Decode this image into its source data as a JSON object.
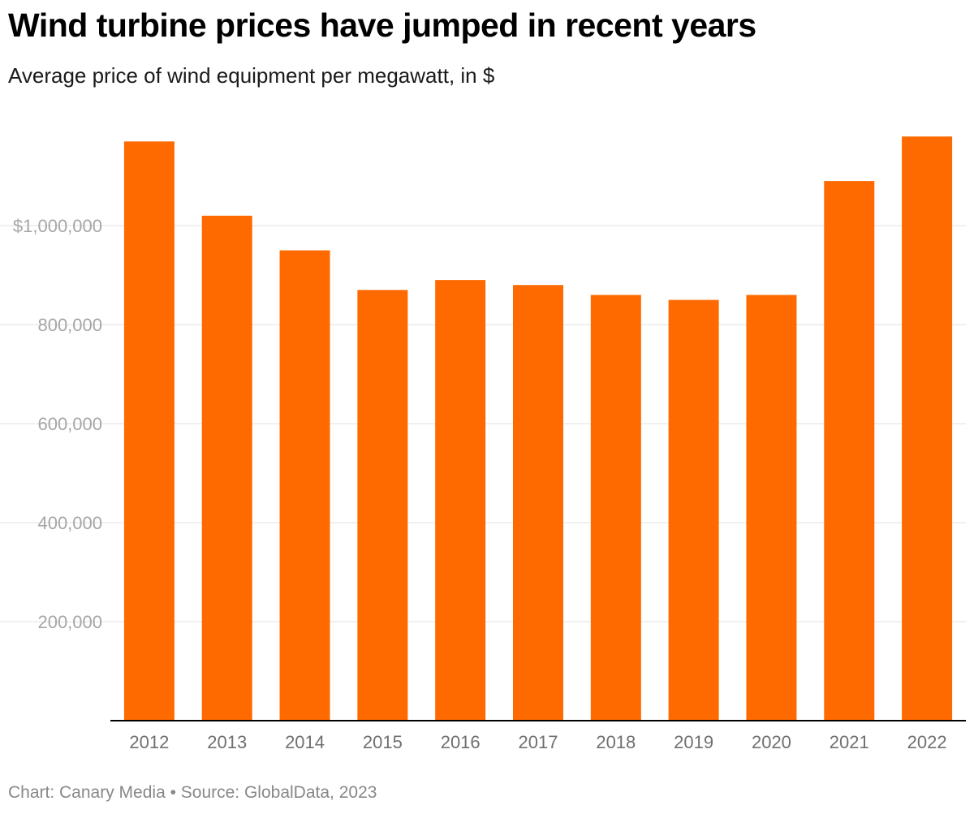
{
  "header": {
    "title": "Wind turbine prices have jumped in recent years",
    "subtitle": "Average price of wind equipment per megawatt, in $"
  },
  "footer": {
    "text": "Chart: Canary Media • Source: GlobalData, 2023"
  },
  "colors": {
    "bar": "#ff6a00",
    "grid": "#e2e2e2",
    "axis": "#000000",
    "tick_label": "#a6a6a6",
    "category_label": "#707070"
  },
  "chart_data": {
    "type": "bar",
    "categories": [
      "2012",
      "2013",
      "2014",
      "2015",
      "2016",
      "2017",
      "2018",
      "2019",
      "2020",
      "2021",
      "2022"
    ],
    "values": [
      1170000,
      1020000,
      950000,
      870000,
      890000,
      880000,
      860000,
      850000,
      860000,
      1090000,
      1180000
    ],
    "ylim": [
      0,
      1180000
    ],
    "yticks": [
      200000,
      400000,
      600000,
      800000,
      1000000
    ],
    "ytick_labels": [
      "200,000",
      "400,000",
      "600,000",
      "800,000",
      "$1,000,000"
    ],
    "grid": true,
    "legend": "none",
    "title": "",
    "xlabel": "",
    "ylabel": ""
  }
}
